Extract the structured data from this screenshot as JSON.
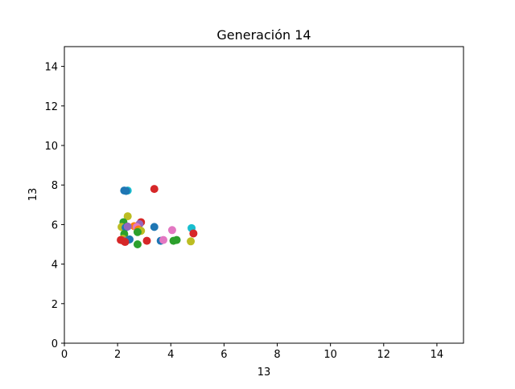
{
  "chart_data": {
    "type": "scatter",
    "title": "Generación 14",
    "xlabel": "13",
    "ylabel": "13",
    "xlim": [
      0,
      15
    ],
    "ylim": [
      0,
      15
    ],
    "xticks": [
      0,
      2,
      4,
      6,
      8,
      10,
      12,
      14
    ],
    "yticks": [
      0,
      2,
      4,
      6,
      8,
      10,
      12,
      14
    ],
    "grid": false,
    "legend": "none",
    "points": [
      {
        "x": 2.25,
        "y": 7.72,
        "color": "#1f77b4"
      },
      {
        "x": 2.38,
        "y": 7.72,
        "color": "#17becf"
      },
      {
        "x": 2.32,
        "y": 7.7,
        "color": "#1f77b4"
      },
      {
        "x": 3.38,
        "y": 7.8,
        "color": "#d62728"
      },
      {
        "x": 2.38,
        "y": 6.42,
        "color": "#bcbd22"
      },
      {
        "x": 2.22,
        "y": 6.12,
        "color": "#2ca02c"
      },
      {
        "x": 2.88,
        "y": 6.12,
        "color": "#d62728"
      },
      {
        "x": 2.82,
        "y": 6.02,
        "color": "#9467bd"
      },
      {
        "x": 2.62,
        "y": 5.92,
        "color": "#ff7f0e"
      },
      {
        "x": 2.72,
        "y": 5.88,
        "color": "#e377c2"
      },
      {
        "x": 2.15,
        "y": 5.88,
        "color": "#bcbd22"
      },
      {
        "x": 2.3,
        "y": 5.85,
        "color": "#1f77b4"
      },
      {
        "x": 2.38,
        "y": 5.9,
        "color": "#9467bd"
      },
      {
        "x": 3.38,
        "y": 5.88,
        "color": "#1f77b4"
      },
      {
        "x": 2.78,
        "y": 5.75,
        "color": "#ff7f0e"
      },
      {
        "x": 2.88,
        "y": 5.68,
        "color": "#bcbd22"
      },
      {
        "x": 2.75,
        "y": 5.62,
        "color": "#2ca02c"
      },
      {
        "x": 4.05,
        "y": 5.72,
        "color": "#e377c2"
      },
      {
        "x": 4.78,
        "y": 5.82,
        "color": "#17becf"
      },
      {
        "x": 4.85,
        "y": 5.55,
        "color": "#d62728"
      },
      {
        "x": 2.25,
        "y": 5.52,
        "color": "#2ca02c"
      },
      {
        "x": 2.2,
        "y": 5.28,
        "color": "#bcbd22"
      },
      {
        "x": 2.12,
        "y": 5.22,
        "color": "#d62728"
      },
      {
        "x": 2.22,
        "y": 5.18,
        "color": "#d62728"
      },
      {
        "x": 2.35,
        "y": 5.2,
        "color": "#7f7f7f"
      },
      {
        "x": 2.45,
        "y": 5.25,
        "color": "#1f77b4"
      },
      {
        "x": 2.28,
        "y": 5.12,
        "color": "#d62728"
      },
      {
        "x": 3.1,
        "y": 5.18,
        "color": "#d62728"
      },
      {
        "x": 2.75,
        "y": 5.0,
        "color": "#2ca02c"
      },
      {
        "x": 3.62,
        "y": 5.18,
        "color": "#1f77b4"
      },
      {
        "x": 3.72,
        "y": 5.22,
        "color": "#e377c2"
      },
      {
        "x": 4.1,
        "y": 5.18,
        "color": "#2ca02c"
      },
      {
        "x": 4.22,
        "y": 5.22,
        "color": "#2ca02c"
      },
      {
        "x": 4.75,
        "y": 5.15,
        "color": "#bcbd22"
      }
    ]
  }
}
